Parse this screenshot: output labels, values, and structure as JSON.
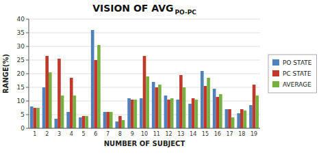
{
  "chart_data": {
    "type": "bar",
    "title": "VISION OF AVG",
    "subtitle": "PO-PC",
    "xlabel": "NUMBER OF SUBJECT",
    "ylabel": "RANGE(%)",
    "categories": [
      "1",
      "2",
      "3",
      "4",
      "5",
      "6",
      "7",
      "8",
      "9",
      "10",
      "11",
      "12",
      "13",
      "14",
      "15",
      "16",
      "17",
      "18",
      "19"
    ],
    "series": [
      {
        "name": "PO STATE",
        "color": "#4F81BD",
        "values": [
          8,
          15,
          3.5,
          6,
          4,
          36,
          6,
          2.5,
          11,
          11,
          17,
          12,
          10.5,
          9,
          21,
          14.5,
          7,
          5.5,
          8.5
        ]
      },
      {
        "name": "PC STATE",
        "color": "#C0392B",
        "values": [
          7.5,
          26.5,
          25.5,
          18.5,
          4.5,
          25,
          6,
          4.5,
          10.5,
          26.5,
          15,
          10.5,
          19.5,
          11,
          15.5,
          11.5,
          7,
          7,
          16
        ]
      },
      {
        "name": "AVERAGE",
        "color": "#76B041",
        "values": [
          7.5,
          20.5,
          12,
          12,
          4.5,
          30.5,
          6,
          3,
          10.5,
          19,
          16,
          11,
          15,
          10.5,
          18.5,
          12.5,
          4,
          6.5,
          12
        ]
      }
    ],
    "ylim": [
      0,
      40
    ],
    "yticks": [
      0,
      5,
      10,
      15,
      20,
      25,
      30,
      35,
      40
    ],
    "grid": true,
    "legend": "right"
  }
}
